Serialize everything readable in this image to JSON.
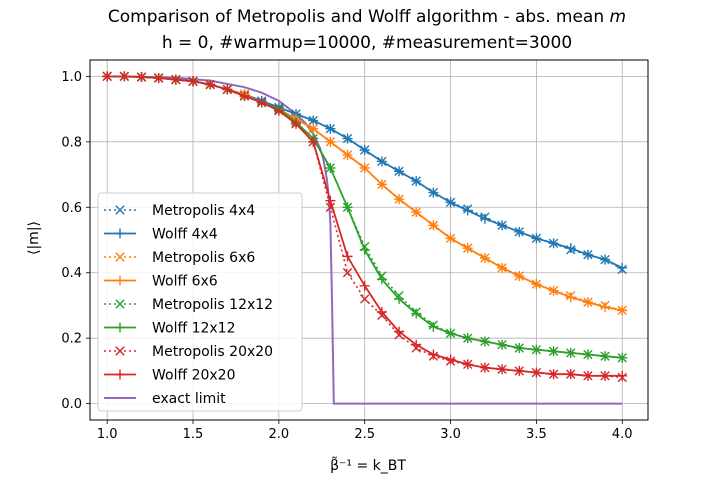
{
  "chart_data": {
    "type": "line",
    "title_line1": "Comparison of Metropolis and Wolff algorithm - abs. mean ",
    "title_line1_math": "m",
    "title_line2": "h = 0, #warmup=10000, #measurement=3000",
    "xlabel": "β̃⁻¹ = k_BT",
    "ylabel": "⟨|m|⟩",
    "xlim": [
      0.9,
      4.15
    ],
    "ylim": [
      -0.05,
      1.05
    ],
    "xticks": [
      1.0,
      1.5,
      2.0,
      2.5,
      3.0,
      3.5,
      4.0
    ],
    "xtick_labels": [
      "1.0",
      "1.5",
      "2.0",
      "2.5",
      "3.0",
      "3.5",
      "4.0"
    ],
    "yticks": [
      0.0,
      0.2,
      0.4,
      0.6,
      0.8,
      1.0
    ],
    "ytick_labels": [
      "0.0",
      "0.2",
      "0.4",
      "0.6",
      "0.8",
      "1.0"
    ],
    "grid": true,
    "legend_position": "lower-left",
    "colors": {
      "4x4": "#1f77b4",
      "6x6": "#ff7f0e",
      "12x12": "#2ca02c",
      "20x20": "#d62728",
      "exact": "#9467bd"
    },
    "x": [
      1.0,
      1.1,
      1.2,
      1.3,
      1.4,
      1.5,
      1.6,
      1.7,
      1.8,
      1.9,
      2.0,
      2.1,
      2.2,
      2.3,
      2.4,
      2.5,
      2.6,
      2.7,
      2.8,
      2.9,
      3.0,
      3.1,
      3.2,
      3.3,
      3.4,
      3.5,
      3.6,
      3.7,
      3.8,
      3.9,
      4.0
    ],
    "series": [
      {
        "name": "Metropolis 4x4",
        "algo": "metropolis",
        "size": "4x4",
        "values": [
          1.0,
          1.0,
          0.998,
          0.995,
          0.99,
          0.985,
          0.975,
          0.96,
          0.945,
          0.925,
          0.905,
          0.885,
          0.865,
          0.84,
          0.81,
          0.775,
          0.74,
          0.71,
          0.68,
          0.645,
          0.615,
          0.595,
          0.57,
          0.545,
          0.525,
          0.505,
          0.49,
          0.47,
          0.455,
          0.44,
          0.41
        ]
      },
      {
        "name": "Wolff 4x4",
        "algo": "wolff",
        "size": "4x4",
        "values": [
          1.0,
          1.0,
          0.998,
          0.995,
          0.99,
          0.985,
          0.975,
          0.96,
          0.945,
          0.925,
          0.905,
          0.885,
          0.865,
          0.84,
          0.81,
          0.775,
          0.74,
          0.71,
          0.68,
          0.645,
          0.615,
          0.59,
          0.565,
          0.545,
          0.525,
          0.505,
          0.49,
          0.475,
          0.455,
          0.44,
          0.415
        ]
      },
      {
        "name": "Metropolis 6x6",
        "algo": "metropolis",
        "size": "6x6",
        "values": [
          1.0,
          1.0,
          0.998,
          0.995,
          0.99,
          0.985,
          0.975,
          0.96,
          0.945,
          0.92,
          0.9,
          0.87,
          0.84,
          0.8,
          0.76,
          0.72,
          0.67,
          0.625,
          0.585,
          0.545,
          0.505,
          0.475,
          0.445,
          0.415,
          0.39,
          0.365,
          0.345,
          0.33,
          0.31,
          0.3,
          0.285
        ]
      },
      {
        "name": "Wolff 6x6",
        "algo": "wolff",
        "size": "6x6",
        "values": [
          1.0,
          1.0,
          0.998,
          0.995,
          0.99,
          0.985,
          0.975,
          0.96,
          0.945,
          0.92,
          0.9,
          0.87,
          0.84,
          0.8,
          0.76,
          0.72,
          0.67,
          0.625,
          0.585,
          0.545,
          0.505,
          0.475,
          0.445,
          0.415,
          0.39,
          0.365,
          0.345,
          0.325,
          0.31,
          0.295,
          0.285
        ]
      },
      {
        "name": "Metropolis 12x12",
        "algo": "metropolis",
        "size": "12x12",
        "values": [
          1.0,
          1.0,
          0.998,
          0.995,
          0.99,
          0.985,
          0.975,
          0.96,
          0.94,
          0.92,
          0.9,
          0.86,
          0.81,
          0.72,
          0.6,
          0.48,
          0.39,
          0.33,
          0.28,
          0.24,
          0.215,
          0.2,
          0.19,
          0.18,
          0.17,
          0.165,
          0.16,
          0.155,
          0.15,
          0.145,
          0.14
        ]
      },
      {
        "name": "Wolff 12x12",
        "algo": "wolff",
        "size": "12x12",
        "values": [
          1.0,
          1.0,
          0.998,
          0.995,
          0.99,
          0.985,
          0.975,
          0.96,
          0.94,
          0.92,
          0.9,
          0.86,
          0.81,
          0.72,
          0.6,
          0.47,
          0.38,
          0.32,
          0.275,
          0.235,
          0.215,
          0.2,
          0.19,
          0.18,
          0.17,
          0.165,
          0.16,
          0.155,
          0.15,
          0.145,
          0.14
        ]
      },
      {
        "name": "Metropolis 20x20",
        "algo": "metropolis",
        "size": "20x20",
        "values": [
          1.0,
          1.0,
          0.998,
          0.995,
          0.99,
          0.985,
          0.975,
          0.96,
          0.94,
          0.92,
          0.895,
          0.855,
          0.8,
          0.6,
          0.4,
          0.32,
          0.27,
          0.21,
          0.17,
          0.145,
          0.13,
          0.12,
          0.11,
          0.105,
          0.1,
          0.095,
          0.09,
          0.09,
          0.085,
          0.085,
          0.08
        ]
      },
      {
        "name": "Wolff 20x20",
        "algo": "wolff",
        "size": "20x20",
        "values": [
          1.0,
          1.0,
          0.998,
          0.995,
          0.99,
          0.985,
          0.975,
          0.96,
          0.94,
          0.92,
          0.895,
          0.855,
          0.8,
          0.62,
          0.45,
          0.36,
          0.28,
          0.22,
          0.18,
          0.15,
          0.135,
          0.12,
          0.11,
          0.105,
          0.1,
          0.095,
          0.09,
          0.09,
          0.085,
          0.085,
          0.085
        ]
      },
      {
        "name": "exact limit",
        "algo": "exact",
        "size": "exact",
        "x": [
          1.0,
          1.2,
          1.4,
          1.6,
          1.8,
          1.9,
          2.0,
          2.1,
          2.15,
          2.2,
          2.24,
          2.26,
          2.28,
          2.29,
          2.3,
          2.31,
          2.32,
          4.0
        ],
        "values": [
          0.9995,
          0.999,
          0.996,
          0.987,
          0.967,
          0.95,
          0.925,
          0.885,
          0.86,
          0.825,
          0.78,
          0.745,
          0.685,
          0.635,
          0.55,
          0.3,
          0.0,
          0.0
        ]
      }
    ]
  }
}
